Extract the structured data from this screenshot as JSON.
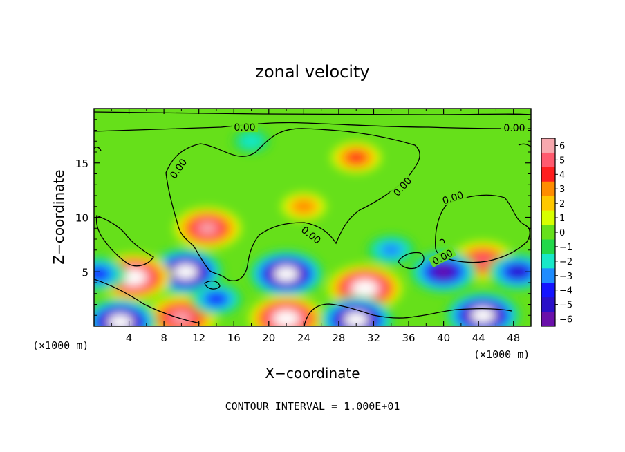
{
  "chart_data": {
    "type": "heatmap",
    "title": "zonal velocity",
    "xlabel": "X−coordinate",
    "ylabel": "Z−coordinate",
    "x_unit_left": "(×1000 m)",
    "x_unit_right": "(×1000 m)",
    "xlim": [
      0,
      50
    ],
    "ylim": [
      0,
      20
    ],
    "x_ticks": [
      4,
      8,
      12,
      16,
      20,
      24,
      28,
      32,
      36,
      40,
      44,
      48
    ],
    "y_ticks": [
      5,
      10,
      15
    ],
    "colorbar": {
      "levels": [
        6,
        5,
        4,
        3,
        2,
        1,
        0,
        -1,
        -2,
        -3,
        -4,
        -5,
        -6
      ],
      "labels": [
        "6",
        "5",
        "4",
        "3",
        "2",
        "1",
        "0",
        "−1",
        "−2",
        "−3",
        "−4",
        "−5",
        "−6"
      ],
      "colors": [
        "#f7a8ae",
        "#ff5a6e",
        "#ff1e1e",
        "#ff8c00",
        "#ffc800",
        "#d7ff00",
        "#66e01a",
        "#22d84a",
        "#18e8c8",
        "#1e8cff",
        "#1414ff",
        "#2a10c8",
        "#6a10aa"
      ]
    },
    "contour_label": "0.00",
    "contour_interval_text": "CONTOUR INTERVAL = 1.000E+01",
    "field_features": [
      {
        "x": 13.0,
        "z": 9.0,
        "value": 5.5
      },
      {
        "x": 30.0,
        "z": 15.5,
        "value": 3.2
      },
      {
        "x": 24.0,
        "z": 11.0,
        "value": 2.5
      },
      {
        "x": 44.5,
        "z": 6.0,
        "value": 5.0
      },
      {
        "x": 10.5,
        "z": 5.0,
        "value": -6.5
      },
      {
        "x": 22.0,
        "z": 4.8,
        "value": -6.5
      },
      {
        "x": 4.5,
        "z": 4.5,
        "value": 6.5
      },
      {
        "x": 31.0,
        "z": 3.5,
        "value": 6.5
      },
      {
        "x": 40.0,
        "z": 5.0,
        "value": -5.5
      },
      {
        "x": 34.0,
        "z": 7.0,
        "value": -3.0
      },
      {
        "x": 22.0,
        "z": 0.7,
        "value": 6.5
      },
      {
        "x": 10.0,
        "z": 0.8,
        "value": 6.0
      },
      {
        "x": 44.5,
        "z": 1.0,
        "value": -6.5
      },
      {
        "x": 30.0,
        "z": 0.6,
        "value": -6.5
      },
      {
        "x": 3.0,
        "z": 0.4,
        "value": -6.5
      },
      {
        "x": 0.5,
        "z": 4.8,
        "value": -4.0
      },
      {
        "x": 48.5,
        "z": 5.0,
        "value": -4.5
      },
      {
        "x": 14.0,
        "z": 2.5,
        "value": -3.5
      },
      {
        "x": 18.0,
        "z": 17.0,
        "value": -1.5
      }
    ]
  }
}
